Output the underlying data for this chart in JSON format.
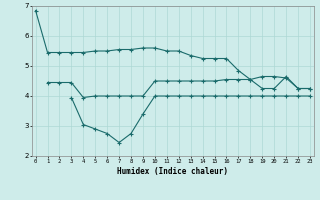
{
  "xlabel": "Humidex (Indice chaleur)",
  "background_color": "#ceecea",
  "grid_color": "#aed8d5",
  "line_color": "#1a6b6b",
  "x_ticks": [
    0,
    1,
    2,
    3,
    4,
    5,
    6,
    7,
    8,
    9,
    10,
    11,
    12,
    13,
    14,
    15,
    16,
    17,
    18,
    19,
    20,
    21,
    22,
    23
  ],
  "ylim": [
    2,
    7
  ],
  "xlim": [
    -0.3,
    23.3
  ],
  "line1_x": [
    0,
    1,
    2,
    3,
    4,
    5,
    6,
    7,
    8,
    9,
    10,
    11,
    12,
    13,
    14,
    15,
    16,
    17,
    18,
    19,
    20,
    21,
    22,
    23
  ],
  "line1_y": [
    6.85,
    5.45,
    5.45,
    5.45,
    5.45,
    5.5,
    5.5,
    5.55,
    5.55,
    5.6,
    5.6,
    5.5,
    5.5,
    5.35,
    5.25,
    5.25,
    5.25,
    4.85,
    4.55,
    4.65,
    4.65,
    4.6,
    4.25,
    4.25
  ],
  "line2_x": [
    1,
    2,
    3,
    4,
    5,
    6,
    7,
    8,
    9,
    10,
    11,
    12,
    13,
    14,
    15,
    16,
    17,
    18,
    19,
    20,
    21,
    22,
    23
  ],
  "line2_y": [
    4.45,
    4.45,
    4.45,
    3.95,
    4.0,
    4.0,
    4.0,
    4.0,
    4.0,
    4.5,
    4.5,
    4.5,
    4.5,
    4.5,
    4.5,
    4.55,
    4.55,
    4.55,
    4.25,
    4.25,
    4.65,
    4.25,
    4.25
  ],
  "line3_x": [
    3,
    4,
    5,
    6,
    7,
    8,
    9,
    10,
    11,
    12,
    13,
    14,
    15,
    16,
    17,
    18,
    19,
    20,
    21,
    22,
    23
  ],
  "line3_y": [
    3.95,
    3.05,
    2.9,
    2.75,
    2.45,
    2.75,
    3.4,
    4.0,
    4.0,
    4.0,
    4.0,
    4.0,
    4.0,
    4.0,
    4.0,
    4.0,
    4.0,
    4.0,
    4.0,
    4.0,
    4.0
  ]
}
